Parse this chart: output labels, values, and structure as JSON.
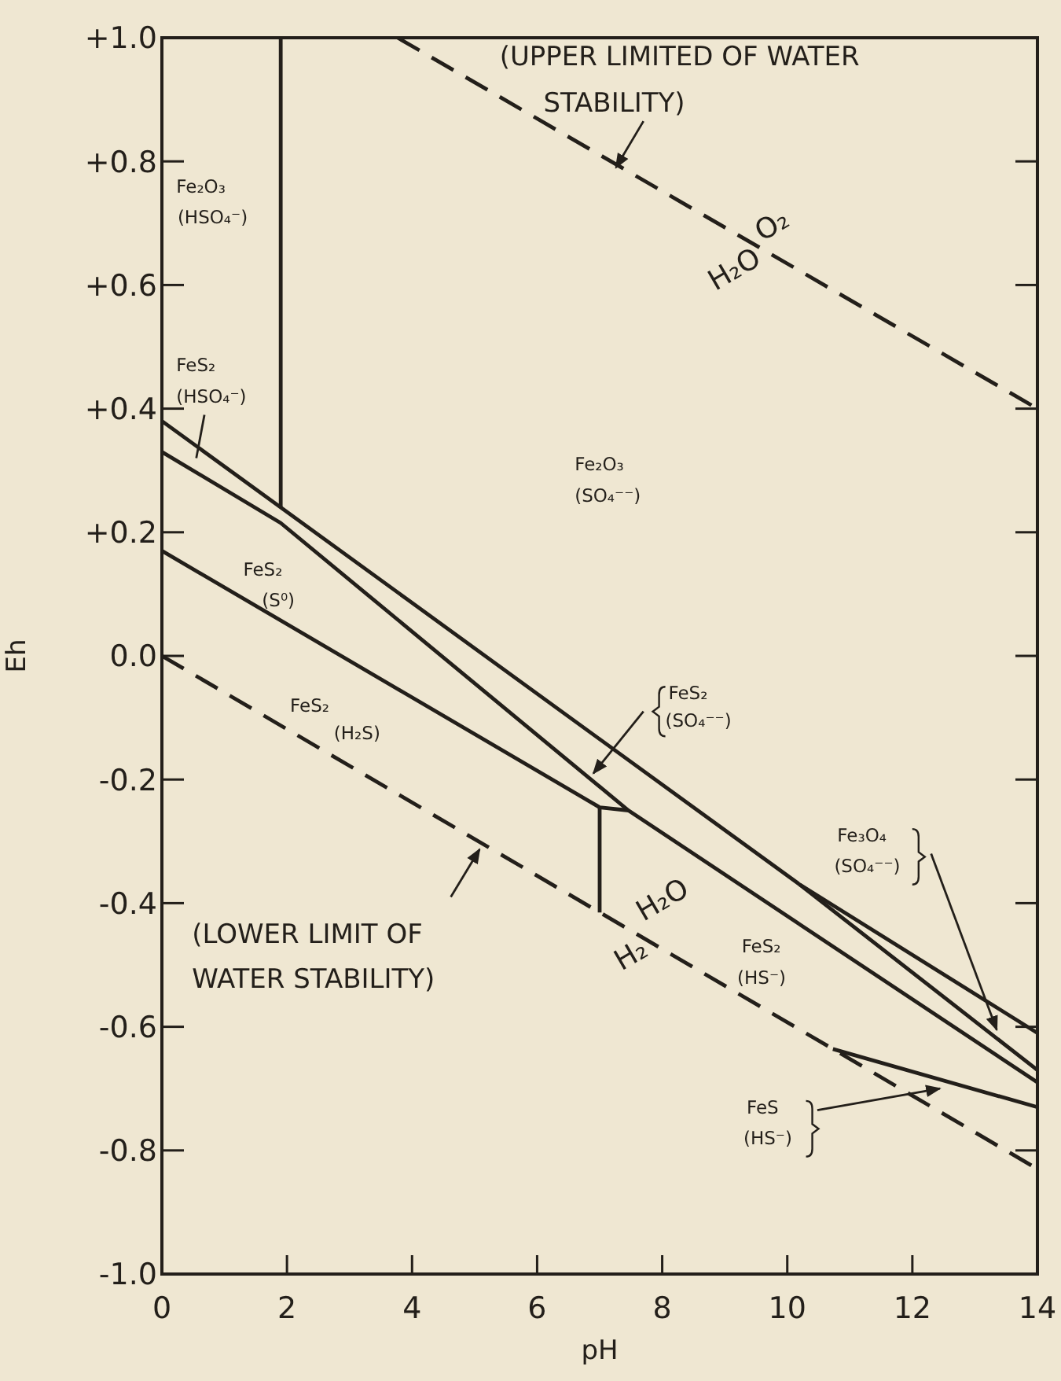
{
  "chart_data": {
    "type": "line",
    "xlabel": "pH",
    "ylabel": "Eh",
    "xlim": [
      0,
      14
    ],
    "ylim": [
      -1,
      1
    ],
    "xticks": [
      0,
      2,
      4,
      6,
      8,
      10,
      12,
      14
    ],
    "yticks": [
      {
        "value": 1,
        "label": "+1.0"
      },
      {
        "value": 0.8,
        "label": "+0.8"
      },
      {
        "value": 0.6,
        "label": "+0.6"
      },
      {
        "value": 0.4,
        "label": "+0.4"
      },
      {
        "value": 0.2,
        "label": "+0.2"
      },
      {
        "value": 0,
        "label": "0.0"
      },
      -0.2,
      -0.4,
      -0.6,
      -0.8,
      {
        "value": -1,
        "label": "-1.0"
      }
    ],
    "grid": false,
    "marker": "none",
    "series": [
      {
        "color": "#231f1a",
        "line_style": "dashed",
        "x": [
          3.77,
          14
        ],
        "values": [
          1.0,
          0.4
        ]
      },
      {
        "color": "#231f1a",
        "line_style": "dashed",
        "x": [
          0,
          10.73,
          14
        ],
        "values": [
          0,
          -0.636,
          -0.83
        ]
      },
      {
        "color": "#231f1a",
        "line_style": "solid",
        "x": [
          0,
          10.2,
          14
        ],
        "values": [
          0.38,
          -0.37,
          -0.67
        ]
      },
      {
        "color": "#231f1a",
        "line_style": "solid",
        "x": [
          10.2,
          14
        ],
        "values": [
          -0.37,
          -0.61
        ]
      },
      {
        "color": "#231f1a",
        "line_style": "solid",
        "x": [
          0,
          1.9,
          7.46,
          14
        ],
        "values": [
          0.33,
          0.215,
          -0.25,
          -0.69
        ]
      },
      {
        "color": "#231f1a",
        "line_style": "solid",
        "x": [
          0,
          7,
          7.46
        ],
        "values": [
          0.17,
          -0.245,
          -0.25
        ]
      },
      {
        "color": "#231f1a",
        "line_style": "solid",
        "x": [
          7,
          7
        ],
        "values": [
          -0.245,
          -0.415
        ]
      },
      {
        "color": "#231f1a",
        "line_style": "solid",
        "x": [
          1.9,
          1.9
        ],
        "values": [
          1.0,
          0.24
        ]
      },
      {
        "color": "#231f1a",
        "line_style": "solid",
        "x": [
          10.73,
          14
        ],
        "values": [
          -0.636,
          -0.73
        ]
      }
    ],
    "annotations": [
      "(UPPER LIMITED OF WATER",
      "STABILITY)",
      "O₂",
      "H₂O",
      "Fe₂O₃",
      "(HSO₄⁻)",
      "FeS₂",
      "(HSO₄⁻)",
      "Fe₂O₃",
      "(SO₄⁻⁻)",
      "FeS₂",
      "(S⁰)",
      "FeS₂",
      "(H₂S)",
      "FeS₂",
      "(SO₄⁻⁻)",
      "Fe₃O₄",
      "(SO₄⁻⁻)",
      "H₂O",
      "H₂",
      "FeS₂",
      "(HS⁻)",
      "FeS",
      "(HS⁻)",
      "(LOWER LIMIT OF",
      "WATER STABILITY)"
    ]
  }
}
